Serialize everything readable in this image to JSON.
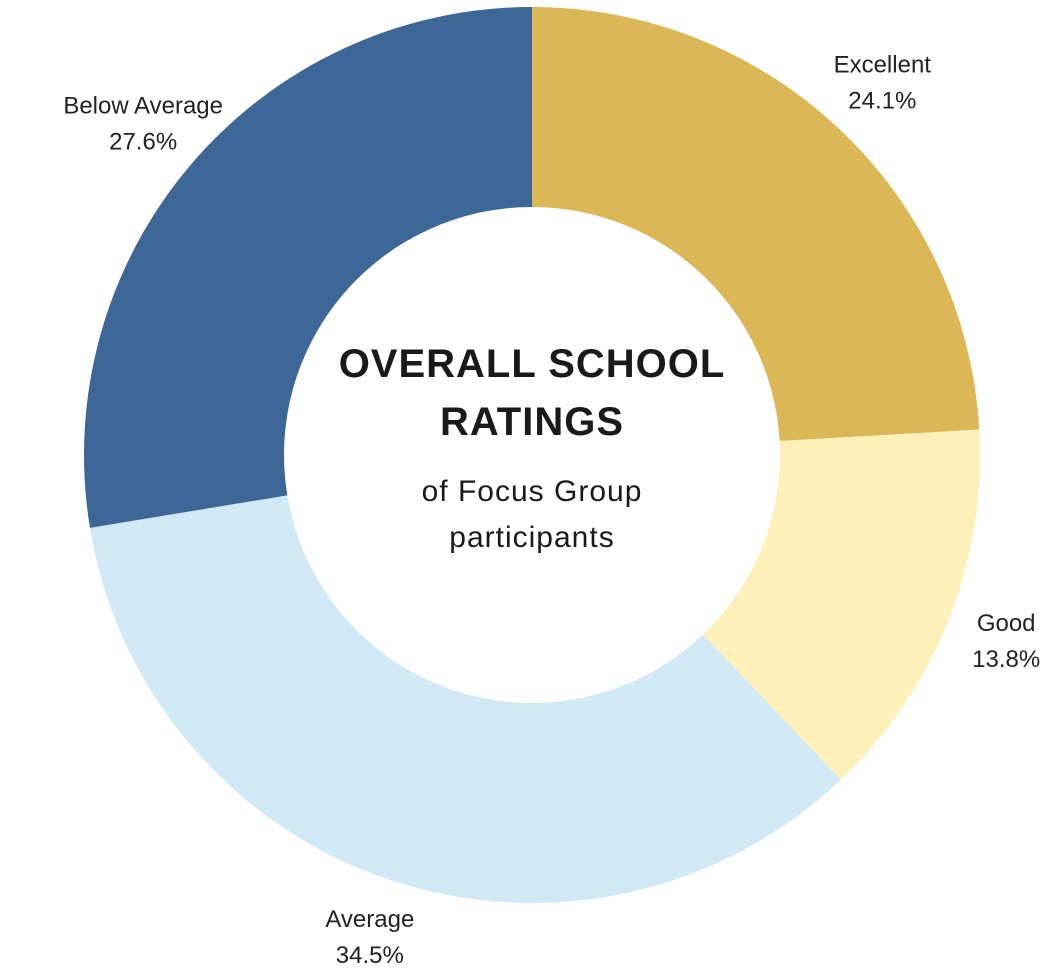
{
  "chart_data": {
    "type": "donut",
    "title": "OVERALL SCHOOL RATINGS",
    "subtitle": "of Focus Group participants",
    "categories": [
      "Excellent",
      "Good",
      "Average",
      "Below Average"
    ],
    "values": [
      24.1,
      13.8,
      34.5,
      27.6
    ],
    "value_labels": [
      "24.1%",
      "13.8%",
      "34.5%",
      "27.6%"
    ],
    "colors": [
      "#dcb756",
      "#fdf0b8",
      "#d1e8f5",
      "#3d6796"
    ]
  }
}
